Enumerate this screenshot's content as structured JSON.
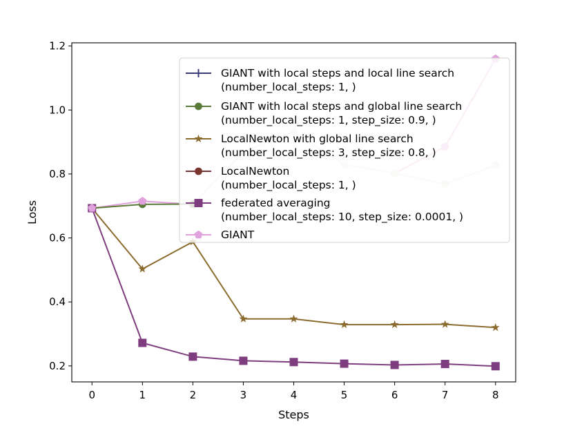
{
  "chart_data": {
    "type": "line",
    "xlabel": "Steps",
    "ylabel": "Loss",
    "xlim": [
      -0.4,
      8.4
    ],
    "ylim": [
      0.15,
      1.21
    ],
    "xticks": [
      0,
      1,
      2,
      3,
      4,
      5,
      6,
      7,
      8
    ],
    "yticks": [
      0.2,
      0.4,
      0.6,
      0.8,
      1.0,
      1.2
    ],
    "ytick_labels": [
      "0.2",
      "0.4",
      "0.6",
      "0.8",
      "1.0",
      "1.2"
    ],
    "xtick_labels": [
      "0",
      "1",
      "2",
      "3",
      "4",
      "5",
      "6",
      "7",
      "8"
    ],
    "legend_position": "top-right",
    "x": [
      0,
      1,
      2,
      3,
      4,
      5,
      6,
      7,
      8
    ],
    "series": [
      {
        "name": "GIANT with local steps and local line search",
        "name_line2": "(number_local_steps: 1, )",
        "color": "#3b3b78",
        "marker": "plus",
        "values": [
          0.693,
          0.705,
          0.706,
          0.869,
          0.932,
          0.83,
          0.802,
          0.769,
          0.827
        ]
      },
      {
        "name": "GIANT with local steps and global line search",
        "name_line2": "(number_local_steps: 1, step_size: 0.9, )",
        "color": "#5a7a38",
        "marker": "circle",
        "values": [
          0.693,
          0.705,
          0.706,
          0.869,
          0.932,
          0.83,
          0.802,
          0.769,
          0.827
        ]
      },
      {
        "name": "LocalNewton with global line search",
        "name_line2": "(number_local_steps: 3, step_size: 0.8, )",
        "color": "#8b6b2e",
        "marker": "star",
        "values": [
          0.693,
          0.503,
          0.588,
          0.347,
          0.347,
          0.329,
          0.329,
          0.33,
          0.32
        ]
      },
      {
        "name": "LocalNewton",
        "name_line2": "(number_local_steps: 1, )",
        "color": "#7b3530",
        "marker": "circle",
        "values": [
          0.693,
          0.705,
          0.706,
          0.869,
          0.932,
          0.83,
          0.802,
          0.769,
          0.827
        ]
      },
      {
        "name": "federated averaging",
        "name_line2": "(number_local_steps: 10, step_size: 0.0001, )",
        "color": "#7e3d7e",
        "marker": "square",
        "values": [
          0.693,
          0.272,
          0.229,
          0.216,
          0.212,
          0.207,
          0.203,
          0.206,
          0.199
        ]
      },
      {
        "name": "GIANT",
        "name_line2": "",
        "color": "#e0a1dc",
        "marker": "pentagon",
        "values": [
          0.693,
          0.715,
          0.705,
          0.869,
          0.932,
          0.83,
          0.802,
          0.885,
          1.16
        ]
      }
    ],
    "visible_line_color": "#e3e6dc"
  }
}
